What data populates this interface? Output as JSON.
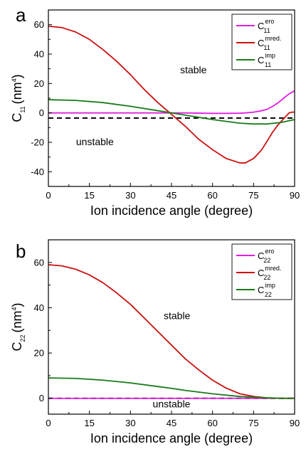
{
  "colors": {
    "ero": "#e020e0",
    "mred": "#cc1111",
    "imp": "#1a7a1a",
    "zero_line": "#000000"
  },
  "chart_data": [
    {
      "type": "line",
      "panel_label": "a",
      "xlabel": "Ion incidence angle (degree)",
      "ylabel_main": "C",
      "ylabel_sub": "11",
      "ylabel_unit": "(nm",
      "ylabel_sup": "4",
      "ylabel_close": ")",
      "xlim": [
        0,
        90
      ],
      "ylim": [
        -50,
        70
      ],
      "xticks": [
        0,
        15,
        30,
        45,
        60,
        75,
        90
      ],
      "yticks": [
        -40,
        -20,
        0,
        20,
        40,
        60
      ],
      "regions": [
        {
          "text": "stable",
          "x": 53,
          "y": 27
        },
        {
          "text": "unstable",
          "x": 17,
          "y": -22
        }
      ],
      "threshold": {
        "y": -3.5,
        "style": "dashed"
      },
      "legend_position": "top-right",
      "series": [
        {
          "key": "ero",
          "name_main": "C",
          "name_sub": "11",
          "name_sup": "ero",
          "x": [
            0,
            10,
            20,
            30,
            40,
            45,
            50,
            60,
            65,
            70,
            72,
            75,
            78,
            80,
            82,
            84,
            86,
            88,
            90
          ],
          "y": [
            0,
            0,
            0,
            0,
            0,
            0,
            0,
            -0.3,
            -0.3,
            -0.2,
            0,
            0.5,
            1.5,
            2.5,
            4.5,
            7,
            10,
            13,
            15
          ]
        },
        {
          "key": "mred",
          "name_main": "C",
          "name_sub": "11",
          "name_sup": "mred.",
          "x": [
            0,
            5,
            10,
            15,
            20,
            25,
            30,
            35,
            40,
            45,
            50,
            55,
            60,
            65,
            70,
            72,
            75,
            78,
            80,
            82,
            84,
            86,
            87,
            88,
            89,
            90
          ],
          "y": [
            59,
            58,
            55,
            50,
            43,
            35,
            26,
            16,
            7,
            -1,
            -9,
            -18,
            -25,
            -31,
            -34,
            -34,
            -31,
            -25,
            -19,
            -13,
            -8,
            -4,
            -2,
            0,
            0.5,
            0.5
          ]
        },
        {
          "key": "imp",
          "name_main": "C",
          "name_sub": "11",
          "name_sup": "imp",
          "x": [
            0,
            10,
            20,
            30,
            40,
            45,
            50,
            60,
            70,
            75,
            80,
            85,
            90
          ],
          "y": [
            9,
            8.5,
            7,
            4.5,
            1.5,
            0,
            -1.5,
            -4.5,
            -7,
            -7.5,
            -7.5,
            -6.5,
            -4.5
          ]
        }
      ]
    },
    {
      "type": "line",
      "panel_label": "b",
      "xlabel": "Ion incidence angle (degree)",
      "ylabel_main": "C",
      "ylabel_sub": "22",
      "ylabel_unit": "(nm",
      "ylabel_sup": "4",
      "ylabel_close": ")",
      "xlim": [
        0,
        90
      ],
      "ylim": [
        -7,
        70
      ],
      "xticks": [
        0,
        15,
        30,
        45,
        60,
        75,
        90
      ],
      "yticks": [
        0,
        20,
        40,
        60
      ],
      "regions": [
        {
          "text": "stable",
          "x": 47,
          "y": 35
        },
        {
          "text": "unstable",
          "x": 45,
          "y": -4
        }
      ],
      "threshold": {
        "y": 0,
        "style": "dashed"
      },
      "legend_position": "top-right",
      "series": [
        {
          "key": "ero",
          "name_main": "C",
          "name_sub": "22",
          "name_sup": "ero",
          "x": [
            0,
            30,
            60,
            90
          ],
          "y": [
            0,
            0,
            0,
            0
          ]
        },
        {
          "key": "mred",
          "name_main": "C",
          "name_sub": "22",
          "name_sup": "mred.",
          "x": [
            0,
            5,
            10,
            15,
            20,
            25,
            30,
            35,
            40,
            45,
            50,
            55,
            60,
            65,
            70,
            75,
            80,
            85,
            90
          ],
          "y": [
            59,
            58.5,
            57,
            54.5,
            51,
            46.5,
            41.5,
            35.5,
            29.5,
            23.5,
            17.5,
            12.5,
            8,
            4.5,
            2,
            0.8,
            0.2,
            0,
            0
          ]
        },
        {
          "key": "imp",
          "name_main": "C",
          "name_sub": "22",
          "name_sup": "imp",
          "x": [
            0,
            10,
            20,
            30,
            40,
            45,
            50,
            60,
            70,
            80,
            85,
            90
          ],
          "y": [
            9,
            8.8,
            8,
            6.8,
            5.2,
            4.4,
            3.5,
            2,
            0.8,
            0.2,
            0,
            0
          ]
        }
      ]
    }
  ]
}
